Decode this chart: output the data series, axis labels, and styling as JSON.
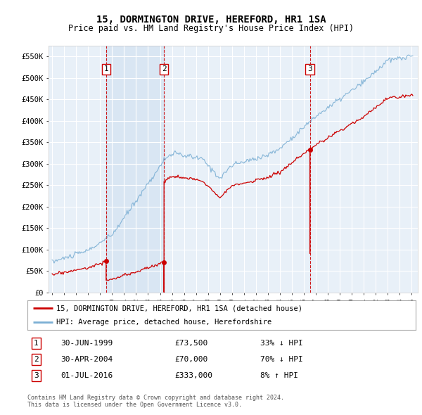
{
  "title": "15, DORMINGTON DRIVE, HEREFORD, HR1 1SA",
  "subtitle": "Price paid vs. HM Land Registry's House Price Index (HPI)",
  "legend_line1": "15, DORMINGTON DRIVE, HEREFORD, HR1 1SA (detached house)",
  "legend_line2": "HPI: Average price, detached house, Herefordshire",
  "footer_line1": "Contains HM Land Registry data © Crown copyright and database right 2024.",
  "footer_line2": "This data is licensed under the Open Government Licence v3.0.",
  "sale_events": [
    {
      "label": "1",
      "date": "30-JUN-1999",
      "price": 73500,
      "note": "33% ↓ HPI",
      "year": 1999.5
    },
    {
      "label": "2",
      "date": "30-APR-2004",
      "price": 70000,
      "note": "70% ↓ HPI",
      "year": 2004.33
    },
    {
      "label": "3",
      "date": "01-JUL-2016",
      "price": 333000,
      "note": "8% ↑ HPI",
      "year": 2016.5
    }
  ],
  "ylim": [
    0,
    575000
  ],
  "yticks": [
    0,
    50000,
    100000,
    150000,
    200000,
    250000,
    300000,
    350000,
    400000,
    450000,
    500000,
    550000
  ],
  "ytick_labels": [
    "£0",
    "£50K",
    "£100K",
    "£150K",
    "£200K",
    "£250K",
    "£300K",
    "£350K",
    "£400K",
    "£450K",
    "£500K",
    "£550K"
  ],
  "hpi_color": "#7bafd4",
  "price_color": "#cc0000",
  "vline_color": "#cc0000",
  "plot_bg": "#e8f0f8",
  "shade_color": "#dce8f5",
  "grid_color": "#ffffff"
}
